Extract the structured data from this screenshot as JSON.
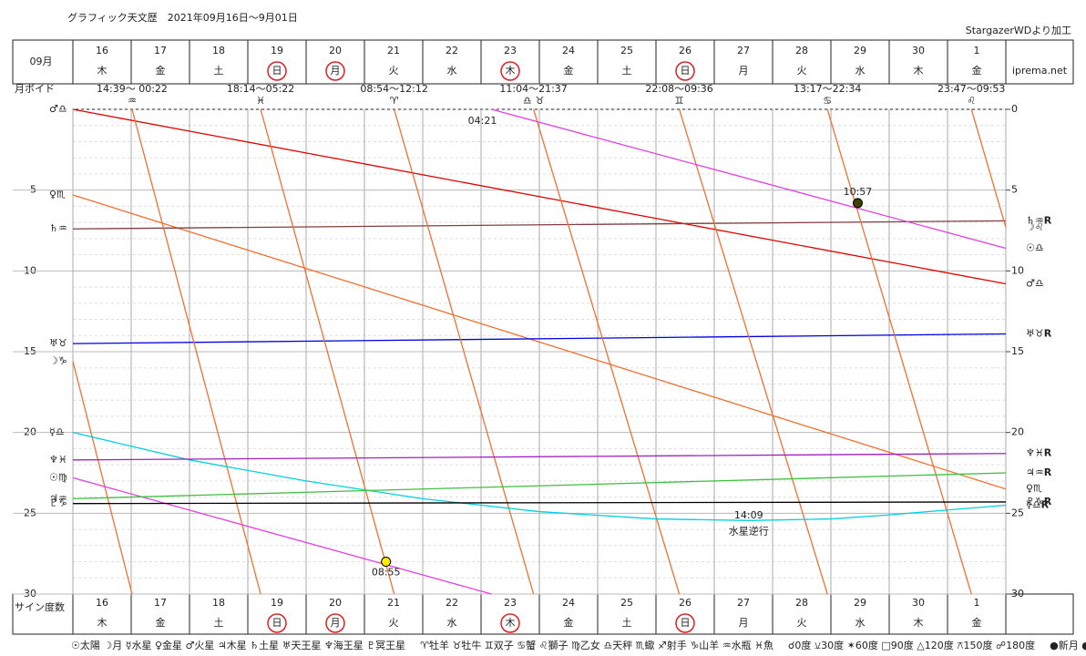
{
  "chart_data": {
    "type": "line",
    "title": "グラフィック天文歴　2021年09月16日～9月01日",
    "source": "StargazerWDより加工",
    "site": "iprema.net",
    "month_label": "09月",
    "void_label": "月ボイド",
    "y_label": "サイン度数",
    "categories": [
      "16",
      "17",
      "18",
      "19",
      "20",
      "21",
      "22",
      "23",
      "24",
      "25",
      "26",
      "27",
      "28",
      "29",
      "30",
      "1"
    ],
    "weekdays": [
      "木",
      "金",
      "土",
      "日",
      "月",
      "火",
      "水",
      "木",
      "金",
      "土",
      "日",
      "月",
      "火",
      "水",
      "木",
      "金"
    ],
    "weekday_styles": [
      "normal",
      "normal",
      "saturday",
      "holiday",
      "holiday",
      "normal",
      "normal",
      "holiday",
      "normal",
      "saturday",
      "holiday",
      "normal",
      "normal",
      "normal",
      "normal",
      "normal"
    ],
    "saturday_color": "#2020e0",
    "holiday_color": "#e02020",
    "xlim": [
      0,
      16
    ],
    "ylim": [
      0,
      30
    ],
    "y_inverted": true,
    "yticks": [
      5,
      10,
      15,
      20,
      25,
      30
    ],
    "y2lim": [
      0,
      30
    ],
    "y2ticks": [
      0,
      5,
      10,
      15,
      20,
      25,
      30
    ],
    "grid": true,
    "series": [
      {
        "name": "♂♎",
        "end_label": "♂♎",
        "color": "#e00000",
        "x": [
          0,
          16
        ],
        "values": [
          0,
          10.8
        ]
      },
      {
        "name": "♀♏",
        "end_label": "♀♏",
        "color": "#f07030",
        "x": [
          0,
          16
        ],
        "values": [
          5.3,
          23.5
        ]
      },
      {
        "name": "♄♒",
        "end_label": "♄♒R",
        "color": "#804040",
        "x": [
          0,
          16
        ],
        "values": [
          7.4,
          6.9
        ]
      },
      {
        "name": "♅♉",
        "end_label": "♅♉R",
        "color": "#0000e0",
        "x": [
          0,
          16
        ],
        "values": [
          14.5,
          13.9
        ]
      },
      {
        "name": "☽♑",
        "end_label": "☽♌",
        "color": "#f07030",
        "x": [
          0,
          1.015,
          null,
          1.015,
          3.22,
          null,
          3.22,
          5.51,
          null,
          5.51,
          7.9,
          null,
          7.9,
          10.4,
          null,
          10.4,
          12.94,
          null,
          12.94,
          15.41,
          null,
          15.41,
          16
        ],
        "values": [
          15.6,
          30,
          null,
          0,
          30,
          null,
          0,
          30,
          null,
          0,
          30,
          null,
          0,
          30,
          null,
          0,
          30,
          null,
          0,
          30,
          null,
          0,
          7.3
        ]
      },
      {
        "name": "☿♎",
        "end_label": "☿♎R",
        "color": "#00d0e0",
        "x": [
          0,
          2,
          4,
          6,
          8,
          10,
          11.59,
          13,
          14,
          16
        ],
        "values": [
          20,
          21.7,
          23,
          24.1,
          24.9,
          25.35,
          25.45,
          25.35,
          25.1,
          24.5
        ]
      },
      {
        "name": "♆♓",
        "end_label": "♆♓R",
        "color": "#a020c0",
        "x": [
          0,
          16
        ],
        "values": [
          21.7,
          21.3
        ]
      },
      {
        "name": "☉♍",
        "end_label": "☉♎",
        "color": "#e040e0",
        "x": [
          0,
          7.18,
          null,
          7.18,
          16
        ],
        "values": [
          22.8,
          30,
          null,
          0,
          8.6
        ]
      },
      {
        "name": "♃♒",
        "end_label": "♃♒R",
        "color": "#40c040",
        "x": [
          0,
          16
        ],
        "values": [
          24.1,
          22.5
        ]
      },
      {
        "name": "♇♑",
        "end_label": "♇♑R",
        "color": "#000000",
        "x": [
          0,
          16
        ],
        "values": [
          24.4,
          24.3
        ]
      }
    ],
    "moon_void": [
      {
        "x": 1.015,
        "time": "14:39～ 00:22",
        "sign": "♒",
        "color": "#40c040"
      },
      {
        "x": 3.22,
        "time": "18:14～05:22",
        "sign": "♓",
        "color": "#00c0e0"
      },
      {
        "x": 5.51,
        "time": "08:54～12:12",
        "sign": "♈",
        "color": "#e02020"
      },
      {
        "x": 7.9,
        "time": "11:04～21:37",
        "sign": "♎ ♉",
        "color": "#208020"
      },
      {
        "x": 10.4,
        "time": "22:08～09:36",
        "sign": "♊",
        "color": "#40c040"
      },
      {
        "x": 12.94,
        "time": "13:17～22:34",
        "sign": "♋",
        "color": "#00c0e0"
      },
      {
        "x": 15.41,
        "time": "23:47～09:53",
        "sign": "♌",
        "color": "#e02020"
      }
    ],
    "moon_phases": [
      {
        "x": 5.37,
        "value": 28,
        "label": "08:55",
        "color": "#ffee00"
      },
      {
        "x": 13.46,
        "value": 5.8,
        "label": "10:57",
        "color": "#404000"
      }
    ],
    "annotations": [
      {
        "x": 7.18,
        "value": 0.4,
        "text": "04:21"
      },
      {
        "x": 11.59,
        "value": 24.8,
        "text": "14:09"
      },
      {
        "x": 11.59,
        "value": 25.8,
        "text": "水星逆行"
      }
    ],
    "legend": [
      "☉太陽 ☽月 ☿水星 ♀金星 ♂火星 ♃木星 ♄土星 ♅天王星 ♆海王星 ♇冥王星",
      "♈牡羊 ♉牡牛 ♊双子 ♋蟹 ♌獅子 ♍乙女 ♎天秤 ♏蠍 ♐射手 ♑山羊 ♒水瓶 ♓魚",
      "☌0度 ⚺30度 ✶60度 □90度 △120度 ⚻150度 ☍180度",
      "●新月 ◐上弦 ○満月 ◑下弦"
    ]
  }
}
